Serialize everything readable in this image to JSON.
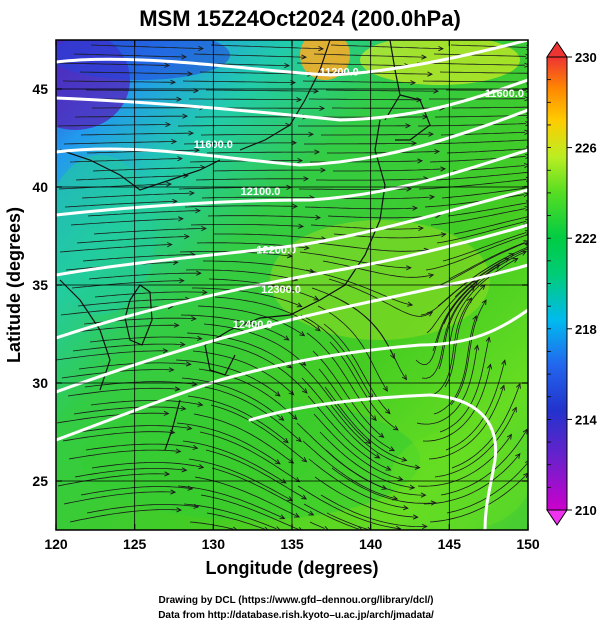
{
  "title": "MSM 15Z24Oct2024 (200.0hPa)",
  "x_axis": {
    "label": "Longitude (degrees)",
    "ticks": [
      "120",
      "125",
      "130",
      "135",
      "140",
      "145",
      "150"
    ],
    "range": [
      120,
      150
    ]
  },
  "y_axis": {
    "label": "Latitude  (degrees)",
    "ticks": [
      "25",
      "30",
      "35",
      "40",
      "45"
    ],
    "range": [
      22.5,
      47.5
    ]
  },
  "colorbar": {
    "ticks": [
      "230",
      "226",
      "222",
      "218",
      "214",
      "210"
    ],
    "range": [
      210,
      230
    ],
    "colors": [
      "#cc00cc",
      "#3333cc",
      "#2266ee",
      "#00ccee",
      "#00cc55",
      "#55dd22",
      "#bbee22",
      "#ffcc00",
      "#ff8800",
      "#ee3333"
    ]
  },
  "contours": [
    {
      "label": "11200.0",
      "value": 11200,
      "lon": 138.0,
      "lat": 45.7
    },
    {
      "label": "11600.0",
      "value": 11600,
      "lon": 130.0,
      "lat": 42.0
    },
    {
      "label": "12100.0",
      "value": 12100,
      "lon": 133.0,
      "lat": 39.6
    },
    {
      "label": "12200.0",
      "value": 12200,
      "lon": 134.0,
      "lat": 36.6
    },
    {
      "label": "12300.0",
      "value": 12300,
      "lon": 134.3,
      "lat": 34.6
    },
    {
      "label": "12400.0",
      "value": 12400,
      "lon": 132.5,
      "lat": 32.8
    },
    {
      "label": "11600.0",
      "value": 11600,
      "lon": 148.5,
      "lat": 44.6
    }
  ],
  "credits": {
    "line1": "Drawing by DCL (https://www.gfd–dennou.org/library/dcl/)",
    "line2": "Data from http://database.rish.kyoto–u.ac.jp/arch/jmadata/"
  }
}
